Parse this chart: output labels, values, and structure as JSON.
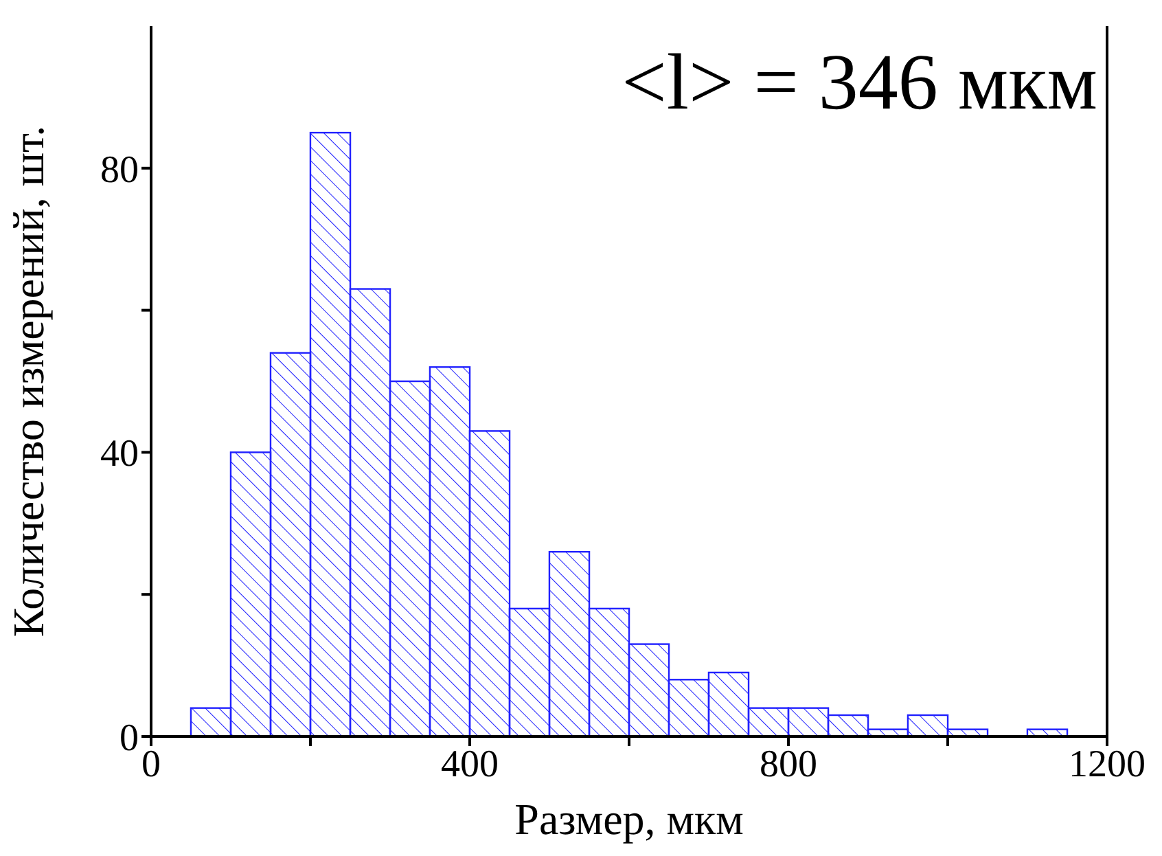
{
  "chart_data": {
    "type": "histogram",
    "xlabel": "Размер, мкм",
    "ylabel": "Количество измерений, шт.",
    "annotations": [
      "<l> = 346 мкм"
    ],
    "bins": [
      50,
      100,
      150,
      200,
      250,
      300,
      350,
      400,
      450,
      500,
      550,
      600,
      650,
      700,
      750,
      800,
      850,
      900,
      950,
      1000,
      1050,
      1100,
      1150
    ],
    "values": [
      4,
      40,
      54,
      85,
      63,
      50,
      52,
      43,
      18,
      26,
      18,
      13,
      8,
      9,
      4,
      4,
      3,
      1,
      3,
      1,
      0,
      1
    ],
    "color": "#2020ff",
    "xlim": [
      0,
      1200
    ],
    "xticks": [
      0,
      {
        "value": 200,
        "label": null
      },
      400,
      {
        "value": 600,
        "label": null
      },
      800,
      {
        "value": 1000,
        "label": null
      },
      1200
    ],
    "ylim": [
      0,
      100
    ],
    "yticks": [
      0,
      {
        "value": 20,
        "label": null
      },
      40,
      {
        "value": 60,
        "label": null
      },
      80
    ],
    "grid": false,
    "legend": false
  }
}
